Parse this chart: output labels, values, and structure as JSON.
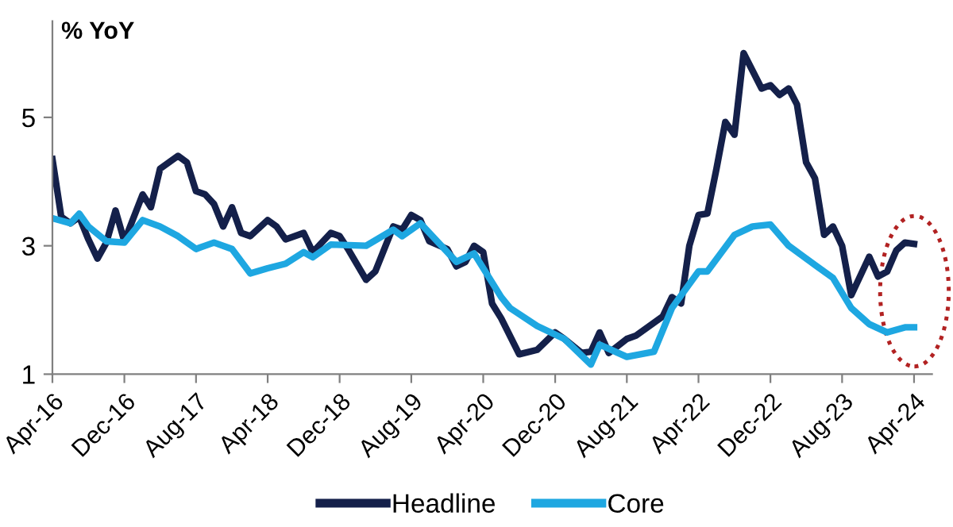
{
  "chart_data": {
    "type": "line",
    "ylabel": "% YoY",
    "xlim": [
      "2016-04",
      "2024-06"
    ],
    "ylim": [
      1,
      6.5
    ],
    "yticks": [
      1,
      3,
      5
    ],
    "xticks": [
      {
        "value": "2016-04",
        "label": "Apr-16"
      },
      {
        "value": "2016-12",
        "label": "Dec-16"
      },
      {
        "value": "2017-08",
        "label": "Aug-17"
      },
      {
        "value": "2018-04",
        "label": "Apr-18"
      },
      {
        "value": "2018-12",
        "label": "Dec-18"
      },
      {
        "value": "2019-08",
        "label": "Aug-19"
      },
      {
        "value": "2020-04",
        "label": "Apr-20"
      },
      {
        "value": "2020-12",
        "label": "Dec-20"
      },
      {
        "value": "2021-08",
        "label": "Aug-21"
      },
      {
        "value": "2022-04",
        "label": "Apr-22"
      },
      {
        "value": "2022-12",
        "label": "Dec-22"
      },
      {
        "value": "2023-08",
        "label": "Aug-23"
      },
      {
        "value": "2024-04",
        "label": "Apr-24"
      }
    ],
    "grid": false,
    "legend": "bottom",
    "marker": "none",
    "line_style": "solid",
    "series": [
      {
        "name": "Headline",
        "color": "#14204a",
        "x": [
          "2016-04",
          "2016-05",
          "2016-06",
          "2016-07",
          "2016-08",
          "2016-09",
          "2016-10",
          "2016-11",
          "2016-12",
          "2017-02",
          "2017-03",
          "2017-04",
          "2017-06",
          "2017-07",
          "2017-08",
          "2017-09",
          "2017-10",
          "2017-11",
          "2017-12",
          "2018-01",
          "2018-02",
          "2018-04",
          "2018-05",
          "2018-06",
          "2018-08",
          "2018-09",
          "2018-11",
          "2018-12",
          "2019-01",
          "2019-03",
          "2019-04",
          "2019-06",
          "2019-07",
          "2019-08",
          "2019-09",
          "2019-10",
          "2019-12",
          "2020-01",
          "2020-02",
          "2020-03",
          "2020-04",
          "2020-05",
          "2020-06",
          "2020-08",
          "2020-10",
          "2020-12",
          "2021-01",
          "2021-03",
          "2021-04",
          "2021-05",
          "2021-06",
          "2021-08",
          "2021-09",
          "2021-11",
          "2021-12",
          "2022-01",
          "2022-02",
          "2022-03",
          "2022-04",
          "2022-05",
          "2022-06",
          "2022-07",
          "2022-08",
          "2022-09",
          "2022-11",
          "2022-12",
          "2023-01",
          "2023-02",
          "2023-03",
          "2023-04",
          "2023-05",
          "2023-06",
          "2023-07",
          "2023-08",
          "2023-09",
          "2023-11",
          "2023-12",
          "2024-01",
          "2024-02",
          "2024-03",
          "2024-04"
        ],
        "values": [
          4.35,
          3.45,
          3.35,
          3.45,
          3.1,
          2.8,
          3.05,
          3.55,
          3.07,
          3.8,
          3.6,
          4.2,
          4.4,
          4.3,
          3.85,
          3.8,
          3.65,
          3.3,
          3.6,
          3.2,
          3.15,
          3.4,
          3.3,
          3.1,
          3.2,
          2.9,
          3.2,
          3.15,
          2.93,
          2.47,
          2.6,
          3.3,
          3.25,
          3.48,
          3.4,
          3.07,
          2.95,
          2.68,
          2.75,
          3.0,
          2.9,
          2.1,
          1.87,
          1.31,
          1.38,
          1.65,
          1.55,
          1.33,
          1.35,
          1.65,
          1.33,
          1.55,
          1.6,
          1.8,
          1.9,
          2.2,
          2.1,
          3.0,
          3.48,
          3.5,
          4.2,
          4.93,
          4.73,
          6.0,
          5.45,
          5.5,
          5.35,
          5.45,
          5.2,
          4.3,
          4.05,
          3.17,
          3.3,
          3.0,
          2.23,
          2.83,
          2.52,
          2.6,
          2.93,
          3.05,
          3.03
        ]
      },
      {
        "name": "Core",
        "color": "#1ea7e1",
        "x": [
          "2016-04",
          "2016-06",
          "2016-07",
          "2016-08",
          "2016-10",
          "2016-12",
          "2017-02",
          "2017-04",
          "2017-06",
          "2017-08",
          "2017-10",
          "2017-12",
          "2018-02",
          "2018-04",
          "2018-06",
          "2018-08",
          "2018-09",
          "2018-11",
          "2019-03",
          "2019-06",
          "2019-07",
          "2019-09",
          "2019-11",
          "2020-01",
          "2020-03",
          "2020-06",
          "2020-07",
          "2020-10",
          "2021-01",
          "2021-04",
          "2021-05",
          "2021-08",
          "2021-11",
          "2022-01",
          "2022-04",
          "2022-05",
          "2022-08",
          "2022-10",
          "2022-12",
          "2023-02",
          "2023-05",
          "2023-07",
          "2023-09",
          "2023-11",
          "2024-01",
          "2024-03",
          "2024-04"
        ],
        "values": [
          3.43,
          3.35,
          3.5,
          3.3,
          3.07,
          3.05,
          3.4,
          3.3,
          3.15,
          2.95,
          3.05,
          2.95,
          2.57,
          2.65,
          2.72,
          2.9,
          2.82,
          3.02,
          3.0,
          3.25,
          3.15,
          3.35,
          3.05,
          2.75,
          2.88,
          2.2,
          2.03,
          1.75,
          1.55,
          1.15,
          1.46,
          1.27,
          1.35,
          2.03,
          2.6,
          2.6,
          3.17,
          3.3,
          3.33,
          3.0,
          2.7,
          2.5,
          2.03,
          1.78,
          1.65,
          1.73,
          1.73
        ]
      }
    ]
  }
}
